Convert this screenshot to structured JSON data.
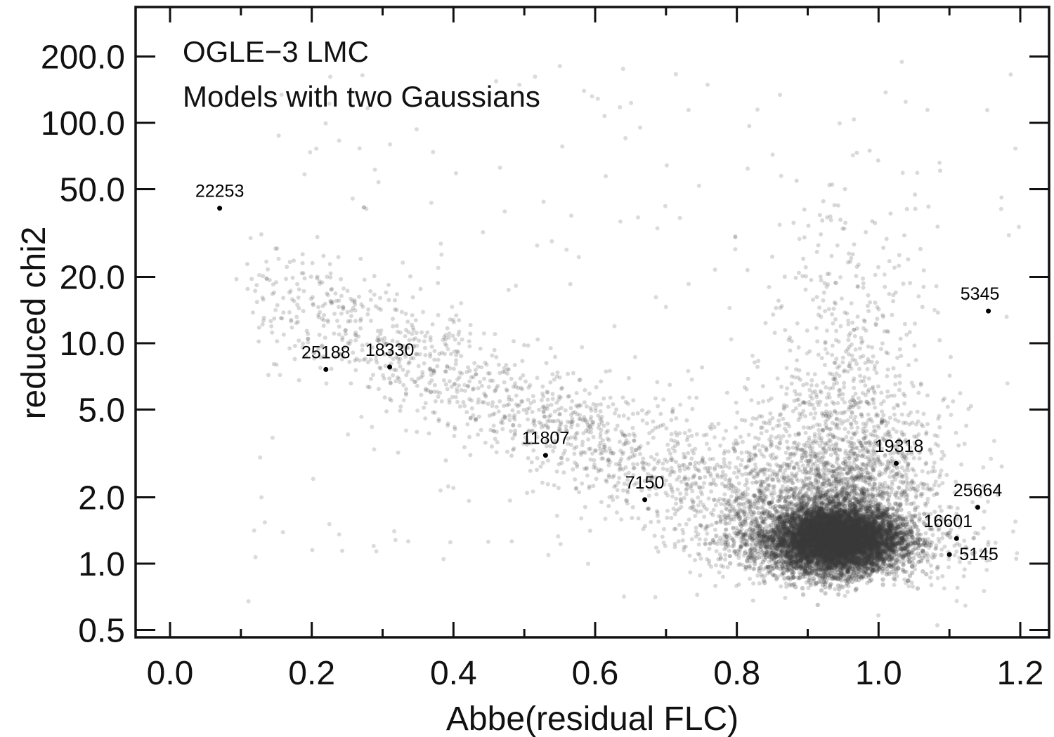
{
  "chart_data": {
    "type": "scatter",
    "title": "",
    "annotations": [
      "OGLE−3 LMC",
      "Models with two Gaussians"
    ],
    "xlabel": "Abbe(residual FLC)",
    "ylabel": "reduced chi2",
    "xlim": [
      -0.05,
      1.23
    ],
    "ylim": [
      0.48,
      330
    ],
    "y_scale": "log",
    "grid": false,
    "legend": "none",
    "x_ticks": [
      0.0,
      0.2,
      0.4,
      0.6,
      0.8,
      1.0,
      1.2
    ],
    "x_tick_labels": [
      "0.0",
      "0.2",
      "0.4",
      "0.6",
      "0.8",
      "1.0",
      "1.2"
    ],
    "y_ticks": [
      0.5,
      1.0,
      2.0,
      5.0,
      10.0,
      20.0,
      50.0,
      100.0,
      200.0
    ],
    "y_tick_labels": [
      "0.5",
      "1.0",
      "2.0",
      "5.0",
      "10.0",
      "20.0",
      "50.0",
      "100.0",
      "200.0"
    ],
    "background_cloud": {
      "description_color": "#555555",
      "core_center": [
        0.94,
        1.3
      ],
      "core_spread": [
        0.045,
        0.2
      ],
      "tail_start": [
        0.12,
        18
      ],
      "tail_end": [
        0.85,
        1.6
      ]
    },
    "labeled_points": [
      {
        "id": "22253",
        "x": 0.07,
        "y": 41
      },
      {
        "id": "25188",
        "x": 0.22,
        "y": 7.6
      },
      {
        "id": "18330",
        "x": 0.31,
        "y": 7.8
      },
      {
        "id": "11807",
        "x": 0.53,
        "y": 3.1
      },
      {
        "id": "7150",
        "x": 0.67,
        "y": 1.95
      },
      {
        "id": "19318",
        "x": 1.025,
        "y": 2.85
      },
      {
        "id": "5345",
        "x": 1.155,
        "y": 14
      },
      {
        "id": "25664",
        "x": 1.14,
        "y": 1.8
      },
      {
        "id": "16601",
        "x": 1.11,
        "y": 1.3
      },
      {
        "id": "5145",
        "x": 1.1,
        "y": 1.1
      }
    ],
    "colors": {
      "points": "#3a3a3a",
      "labeled": "#000000",
      "axes": "#111111"
    }
  }
}
